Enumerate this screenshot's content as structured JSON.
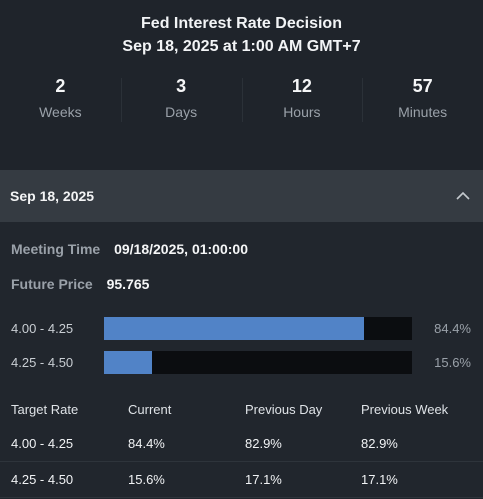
{
  "header": {
    "title": "Fed Interest Rate Decision",
    "subtitle": "Sep 18, 2025 at 1:00 AM GMT+7"
  },
  "countdown": [
    {
      "value": "2",
      "label": "Weeks"
    },
    {
      "value": "3",
      "label": "Days"
    },
    {
      "value": "12",
      "label": "Hours"
    },
    {
      "value": "57",
      "label": "Minutes"
    }
  ],
  "accordion": {
    "label": "Sep 18, 2025",
    "icon": "chevron-up-icon",
    "expanded": true
  },
  "details": {
    "meeting_time_label": "Meeting Time",
    "meeting_time_value": "09/18/2025, 01:00:00",
    "future_price_label": "Future Price",
    "future_price_value": "95.765"
  },
  "probabilities": [
    {
      "range": "4.00 - 4.25",
      "percent_text": "84.4%",
      "value": 84.4
    },
    {
      "range": "4.25 - 4.50",
      "percent_text": "15.6%",
      "value": 15.6
    }
  ],
  "table": {
    "headers": [
      "Target Rate",
      "Current",
      "Previous Day",
      "Previous Week"
    ],
    "rows": [
      [
        "4.00 - 4.25",
        "84.4%",
        "82.9%",
        "82.9%"
      ],
      [
        "4.25 - 4.50",
        "15.6%",
        "17.1%",
        "17.1%"
      ]
    ]
  },
  "colors": {
    "background": "#1f242b",
    "accordion_bg": "#353b42",
    "bar_fill": "#5183c7",
    "bar_track": "#0b0d10",
    "muted_text": "#9aa1a9"
  }
}
